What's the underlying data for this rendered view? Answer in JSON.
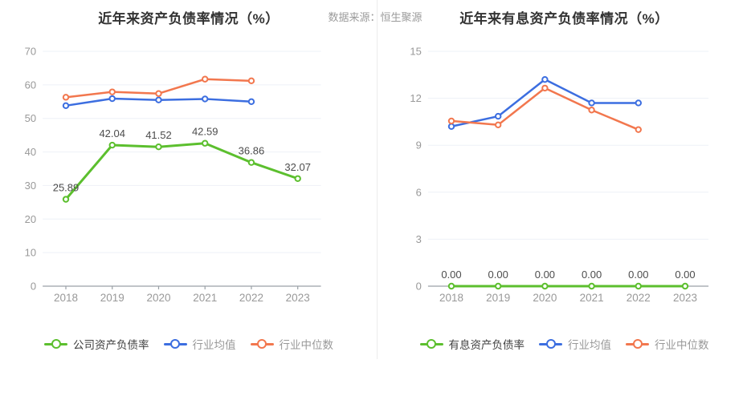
{
  "page": {
    "source_label": "数据来源：恒生聚源"
  },
  "colors": {
    "series_green": "#5cbf2e",
    "series_blue": "#3c6ee0",
    "series_orange": "#f2774e",
    "grid": "#eef1f7",
    "axis": "#9aa0a6",
    "axis_text": "#999999",
    "value_label": "#4c4c4c",
    "title": "#333333",
    "legend_primary": "#404040",
    "legend_muted": "#999999",
    "divider": "#ececec",
    "background": "#ffffff"
  },
  "chart_data": [
    {
      "type": "line",
      "title": "近年来资产负债率情况（%）",
      "categories": [
        "2018",
        "2019",
        "2020",
        "2021",
        "2022",
        "2023"
      ],
      "ylim": [
        0,
        70
      ],
      "yticks": [
        0,
        10,
        20,
        30,
        40,
        50,
        60,
        70
      ],
      "grid": true,
      "legend_position": "bottom",
      "series": [
        {
          "name": "公司资产负债率",
          "color": "#5cbf2e",
          "values": [
            25.89,
            42.04,
            41.52,
            42.59,
            36.86,
            32.07
          ],
          "value_labels": [
            "25.89",
            "42.04",
            "41.52",
            "42.59",
            "36.86",
            "32.07"
          ]
        },
        {
          "name": "行业均值",
          "color": "#3c6ee0",
          "values": [
            53.8,
            55.9,
            55.5,
            55.8,
            55.0,
            null
          ]
        },
        {
          "name": "行业中位数",
          "color": "#f2774e",
          "values": [
            56.3,
            57.9,
            57.4,
            61.7,
            61.2,
            null
          ]
        }
      ]
    },
    {
      "type": "line",
      "title": "近年来有息资产负债率情况（%）",
      "categories": [
        "2018",
        "2019",
        "2020",
        "2021",
        "2022",
        "2023"
      ],
      "ylim": [
        0,
        15
      ],
      "yticks": [
        0,
        3,
        6,
        9,
        12,
        15
      ],
      "grid": true,
      "legend_position": "bottom",
      "series": [
        {
          "name": "有息资产负债率",
          "color": "#5cbf2e",
          "values": [
            0,
            0,
            0,
            0,
            0,
            0
          ],
          "value_labels": [
            "0.00",
            "0.00",
            "0.00",
            "0.00",
            "0.00",
            "0.00"
          ]
        },
        {
          "name": "行业均值",
          "color": "#3c6ee0",
          "values": [
            10.2,
            10.85,
            13.2,
            11.7,
            11.7,
            null
          ]
        },
        {
          "name": "行业中位数",
          "color": "#f2774e",
          "values": [
            10.55,
            10.3,
            12.65,
            11.25,
            10.0,
            null
          ]
        }
      ]
    }
  ]
}
